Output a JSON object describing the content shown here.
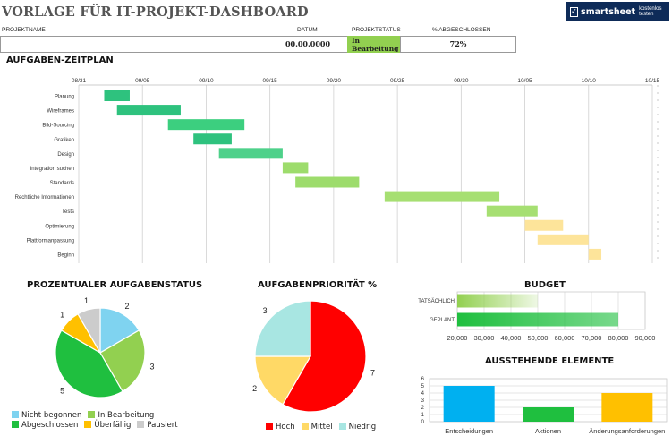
{
  "header": {
    "title": "VORLAGE FÜR IT-PROJEKT-DASHBOARD",
    "logo_brand": "smartsheet",
    "logo_cta": "kostenlos testen",
    "labels": {
      "name": "PROJEKTNAME",
      "date": "DATUM",
      "status": "PROJEKTSTATUS",
      "percent": "% ABGESCHLOSSEN"
    },
    "values": {
      "name": "",
      "date": "00.00.0000",
      "status": "In Bearbeitung",
      "percent": "72%"
    },
    "status_color": "#92d050"
  },
  "gantt": {
    "title": "AUFGABEN-ZEITPLAN",
    "chart_data": {
      "type": "bar",
      "x_ticks": [
        "08/31",
        "09/05",
        "09/10",
        "09/15",
        "09/20",
        "09/25",
        "09/30",
        "10/05",
        "10/10",
        "10/15"
      ],
      "xlim": [
        "2023-08-31",
        "2023-10-15"
      ],
      "tasks": [
        {
          "name": "Planung",
          "start": "2023-09-02",
          "end": "2023-09-04",
          "color": "#2ec27e"
        },
        {
          "name": "Wireframes",
          "start": "2023-09-03",
          "end": "2023-09-08",
          "color": "#2ec27e"
        },
        {
          "name": "Bild-Sourcing",
          "start": "2023-09-07",
          "end": "2023-09-13",
          "color": "#3ccf7f"
        },
        {
          "name": "Grafiken",
          "start": "2023-09-09",
          "end": "2023-09-12",
          "color": "#2ec27e"
        },
        {
          "name": "Design",
          "start": "2023-09-11",
          "end": "2023-09-16",
          "color": "#4ed18a"
        },
        {
          "name": "Integration suchen",
          "start": "2023-09-16",
          "end": "2023-09-18",
          "color": "#9ddc6c"
        },
        {
          "name": "Standards",
          "start": "2023-09-17",
          "end": "2023-09-22",
          "color": "#9ddc6c"
        },
        {
          "name": "Rechtliche Informationen",
          "start": "2023-09-24",
          "end": "2023-10-03",
          "color": "#a6df72"
        },
        {
          "name": "Tests",
          "start": "2023-10-02",
          "end": "2023-10-06",
          "color": "#a6df72"
        },
        {
          "name": "Optimierung",
          "start": "2023-10-05",
          "end": "2023-10-08",
          "color": "#fde49a"
        },
        {
          "name": "Plattformanpassung",
          "start": "2023-10-06",
          "end": "2023-10-10",
          "color": "#fde49a"
        },
        {
          "name": "Beginn",
          "start": "2023-10-10",
          "end": "2023-10-11",
          "color": "#fde49a"
        }
      ]
    }
  },
  "status_pie": {
    "title": "PROZENTUALER AUFGABENSTATUS",
    "chart_data": {
      "type": "pie",
      "slices": [
        {
          "name": "Nicht begonnen",
          "value": 2,
          "color": "#7fd3f0"
        },
        {
          "name": "In Bearbeitung",
          "value": 3,
          "color": "#92d050"
        },
        {
          "name": "Abgeschlossen",
          "value": 5,
          "color": "#1fbf3f"
        },
        {
          "name": "Überfällig",
          "value": 1,
          "color": "#ffc000"
        },
        {
          "name": "Pausiert",
          "value": 1,
          "color": "#cccccc"
        }
      ]
    }
  },
  "priority_pie": {
    "title": "AUFGABENPRIORITÄT %",
    "chart_data": {
      "type": "pie",
      "slices": [
        {
          "name": "Hoch",
          "value": 7,
          "color": "#ff0000"
        },
        {
          "name": "Mittel",
          "value": 2,
          "color": "#ffd966"
        },
        {
          "name": "Niedrig",
          "value": 3,
          "color": "#a8e6e2"
        }
      ]
    }
  },
  "budget": {
    "title": "BUDGET",
    "chart_data": {
      "type": "bar",
      "orientation": "horizontal",
      "categories": [
        "TATSÄCHLICH",
        "GEPLANT"
      ],
      "values": [
        50000,
        80000
      ],
      "colors": [
        "#92d050",
        "#1fbf3f"
      ],
      "xlim": [
        20000,
        90000
      ],
      "x_ticks": [
        "20,000",
        "30,000",
        "40,000",
        "50,000",
        "60,000",
        "70,000",
        "80,000",
        "90,000"
      ]
    }
  },
  "pending": {
    "title": "AUSSTEHENDE ELEMENTE",
    "chart_data": {
      "type": "bar",
      "categories": [
        "Entscheidungen",
        "Aktionen",
        "Änderungsanforderungen"
      ],
      "values": [
        5,
        2,
        4
      ],
      "colors": [
        "#00b0f0",
        "#1fbf3f",
        "#ffc000"
      ],
      "ylim": [
        0,
        6
      ],
      "y_ticks": [
        "0",
        "1",
        "2",
        "3",
        "4",
        "5",
        "6"
      ]
    }
  }
}
